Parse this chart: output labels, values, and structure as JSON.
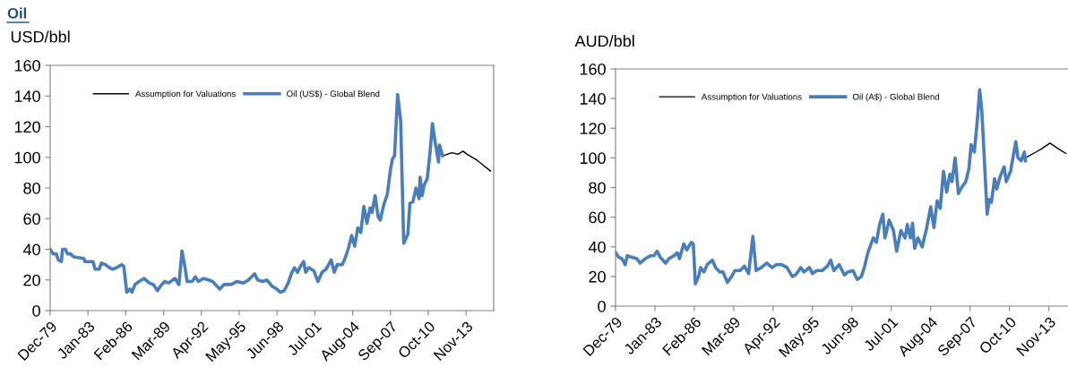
{
  "chart_data": [
    {
      "type": "line",
      "title": "Oil",
      "ylabel": "USD/bbl",
      "legend": "top left",
      "grid": false,
      "marker": "none",
      "line_style": "solid",
      "xlim": [
        "1979-12",
        "2016-02"
      ],
      "ylim": [
        0,
        160
      ],
      "yticks": [
        0,
        20,
        40,
        60,
        80,
        100,
        120,
        140,
        160
      ],
      "xticks": [
        {
          "value": "1979-12",
          "label": "Dec-79"
        },
        {
          "value": "1983-01",
          "label": "Jan-83"
        },
        {
          "value": "1986-02",
          "label": "Feb-86"
        },
        {
          "value": "1989-03",
          "label": "Mar-89"
        },
        {
          "value": "1992-04",
          "label": "Apr-92"
        },
        {
          "value": "1995-05",
          "label": "May-95"
        },
        {
          "value": "1998-06",
          "label": "Jun-98"
        },
        {
          "value": "2001-07",
          "label": "Jul-01"
        },
        {
          "value": "2004-08",
          "label": "Aug-04"
        },
        {
          "value": "2007-09",
          "label": "Sep-07"
        },
        {
          "value": "2010-10",
          "label": "Oct-10"
        },
        {
          "value": "2013-11",
          "label": "Nov-13"
        }
      ],
      "series": [
        {
          "name": "Assumption for Valuations",
          "color": "#000000",
          "x": [
            "2011-12",
            "2012-09",
            "2013-03",
            "2013-08",
            "2013-12",
            "2014-10",
            "2015-11"
          ],
          "values": [
            101,
            103,
            102,
            104,
            102,
            98,
            91
          ]
        },
        {
          "name": "Oil (US$) - Global Blend",
          "color": "#4a7ebb",
          "x": [
            "1979-12",
            "1980-03",
            "1980-06",
            "1980-08",
            "1980-11",
            "1980-12",
            "1981-03",
            "1981-05",
            "1981-08",
            "1981-11",
            "1982-09",
            "1982-10",
            "1983-06",
            "1983-08",
            "1983-12",
            "1984-02",
            "1984-06",
            "1984-10",
            "1985-01",
            "1985-05",
            "1985-10",
            "1985-12",
            "1986-03",
            "1986-06",
            "1986-08",
            "1986-11",
            "1987-03",
            "1987-08",
            "1988-01",
            "1988-05",
            "1988-09",
            "1988-12",
            "1989-04",
            "1989-08",
            "1990-02",
            "1990-06",
            "1990-09",
            "1990-12",
            "1991-02",
            "1991-07",
            "1991-10",
            "1992-01",
            "1992-06",
            "1992-11",
            "1993-03",
            "1993-10",
            "1994-02",
            "1994-09",
            "1995-03",
            "1995-09",
            "1996-02",
            "1996-08",
            "1996-11",
            "1997-04",
            "1997-08",
            "1998-01",
            "1998-06",
            "1998-09",
            "1999-01",
            "1999-05",
            "1999-08",
            "1999-11",
            "2000-02",
            "2000-05",
            "2000-08",
            "2000-10",
            "2001-01",
            "2001-06",
            "2001-10",
            "2002-02",
            "2002-06",
            "2002-11",
            "2003-02",
            "2003-05",
            "2003-10",
            "2004-01",
            "2004-04",
            "2004-07",
            "2004-10",
            "2005-01",
            "2005-04",
            "2005-07",
            "2005-10",
            "2006-01",
            "2006-03",
            "2006-06",
            "2006-09",
            "2006-11",
            "2007-02",
            "2007-06",
            "2007-09",
            "2007-11",
            "2008-01",
            "2008-04",
            "2008-07",
            "2008-10",
            "2009-02",
            "2009-04",
            "2009-07",
            "2009-10",
            "2010-01",
            "2010-02",
            "2010-04",
            "2010-06",
            "2010-09",
            "2010-12",
            "2011-02",
            "2011-05",
            "2011-08",
            "2011-09",
            "2011-12"
          ],
          "values": [
            40,
            37,
            37,
            33,
            32,
            40,
            40,
            37,
            37,
            35,
            34,
            32,
            32,
            27,
            27,
            31,
            30,
            28,
            27,
            28,
            30,
            29,
            12,
            14,
            12,
            17,
            19,
            21,
            18,
            17,
            13,
            16,
            19,
            18,
            21,
            17,
            39,
            28,
            19,
            19,
            22,
            19,
            21,
            20,
            19,
            14,
            17,
            17,
            19,
            18,
            20,
            24,
            20,
            19,
            20,
            16,
            14,
            12,
            13,
            18,
            24,
            28,
            25,
            29,
            32,
            25,
            28,
            26,
            19,
            25,
            27,
            33,
            25,
            30,
            30,
            35,
            41,
            49,
            42,
            54,
            51,
            68,
            57,
            67,
            64,
            75,
            61,
            59,
            68,
            76,
            92,
            99,
            101,
            141,
            124,
            44,
            50,
            70,
            71,
            80,
            73,
            87,
            75,
            82,
            86,
            105,
            122,
            109,
            97,
            108,
            101
          ]
        }
      ]
    },
    {
      "type": "line",
      "ylabel": "AUD/bbl",
      "legend": "top left",
      "grid": false,
      "marker": "none",
      "line_style": "solid",
      "xlim": [
        "1979-12",
        "2015-05"
      ],
      "ylim": [
        0,
        160
      ],
      "yticks": [
        0,
        20,
        40,
        60,
        80,
        100,
        120,
        140,
        160
      ],
      "xticks": [
        {
          "value": "1979-12",
          "label": "Dec-79"
        },
        {
          "value": "1983-01",
          "label": "Jan-83"
        },
        {
          "value": "1986-02",
          "label": "Feb-86"
        },
        {
          "value": "1989-03",
          "label": "Mar-89"
        },
        {
          "value": "1992-04",
          "label": "Apr-92"
        },
        {
          "value": "1995-05",
          "label": "May-95"
        },
        {
          "value": "1998-06",
          "label": "Jun-98"
        },
        {
          "value": "2001-07",
          "label": "Jul-01"
        },
        {
          "value": "2004-08",
          "label": "Aug-04"
        },
        {
          "value": "2007-09",
          "label": "Sep-07"
        },
        {
          "value": "2010-10",
          "label": "Oct-10"
        },
        {
          "value": "2013-11",
          "label": "Nov-13"
        }
      ],
      "series": [
        {
          "name": "Assumption for Valuations",
          "color": "#000000",
          "x": [
            "2012-01",
            "2012-11",
            "2013-04",
            "2013-12",
            "2014-08",
            "2015-03"
          ],
          "values": [
            100,
            104,
            106,
            110,
            106,
            103
          ]
        },
        {
          "name": "Oil (A$) - Global Blend",
          "color": "#4a7ebb",
          "x": [
            "1979-12",
            "1980-03",
            "1980-06",
            "1980-09",
            "1980-11",
            "1981-03",
            "1981-08",
            "1981-11",
            "1982-04",
            "1982-09",
            "1982-12",
            "1983-03",
            "1983-06",
            "1983-11",
            "1984-02",
            "1984-07",
            "1984-10",
            "1984-12",
            "1985-04",
            "1985-07",
            "1985-11",
            "1986-01",
            "1986-03",
            "1986-06",
            "1986-08",
            "1986-11",
            "1987-02",
            "1987-07",
            "1987-10",
            "1988-02",
            "1988-05",
            "1988-09",
            "1989-01",
            "1989-04",
            "1989-09",
            "1990-01",
            "1990-05",
            "1990-09",
            "1990-12",
            "1991-05",
            "1991-10",
            "1992-03",
            "1992-07",
            "1992-12",
            "1993-05",
            "1993-10",
            "1994-01",
            "1994-06",
            "1994-09",
            "1995-02",
            "1995-05",
            "1995-09",
            "1996-02",
            "1996-07",
            "1996-10",
            "1997-01",
            "1997-06",
            "1997-11",
            "1998-02",
            "1998-07",
            "1998-11",
            "1999-03",
            "1999-06",
            "1999-09",
            "2000-02",
            "2000-05",
            "2000-08",
            "2000-11",
            "2001-01",
            "2001-05",
            "2001-09",
            "2001-12",
            "2002-04",
            "2002-08",
            "2002-10",
            "2003-01",
            "2003-03",
            "2003-05",
            "2003-08",
            "2003-12",
            "2004-04",
            "2004-08",
            "2004-11",
            "2005-02",
            "2005-05",
            "2005-08",
            "2005-11",
            "2006-02",
            "2006-04",
            "2006-07",
            "2006-10",
            "2007-01",
            "2007-05",
            "2007-08",
            "2007-10",
            "2008-01",
            "2008-04",
            "2008-06",
            "2008-08",
            "2009-01",
            "2009-03",
            "2009-05",
            "2009-08",
            "2009-10",
            "2010-01",
            "2010-05",
            "2010-07",
            "2010-11",
            "2011-04",
            "2011-06",
            "2011-09",
            "2011-12",
            "2012-01"
          ],
          "values": [
            36,
            33,
            32,
            28,
            34,
            33,
            32,
            29,
            32,
            34,
            34,
            37,
            33,
            29,
            32,
            34,
            36,
            32,
            42,
            38,
            43,
            42,
            15,
            20,
            26,
            23,
            28,
            31,
            26,
            23,
            23,
            16,
            20,
            24,
            24,
            27,
            22,
            47,
            24,
            26,
            29,
            26,
            28,
            28,
            26,
            20,
            21,
            26,
            23,
            26,
            22,
            24,
            24,
            27,
            31,
            24,
            28,
            21,
            23,
            24,
            18,
            20,
            27,
            36,
            46,
            43,
            55,
            62,
            46,
            58,
            51,
            37,
            51,
            46,
            55,
            46,
            56,
            39,
            46,
            40,
            52,
            67,
            53,
            71,
            66,
            91,
            77,
            89,
            84,
            100,
            76,
            80,
            84,
            93,
            109,
            104,
            127,
            146,
            132,
            62,
            72,
            70,
            86,
            79,
            87,
            94,
            84,
            91,
            111,
            100,
            98,
            104,
            98
          ]
        }
      ]
    }
  ]
}
